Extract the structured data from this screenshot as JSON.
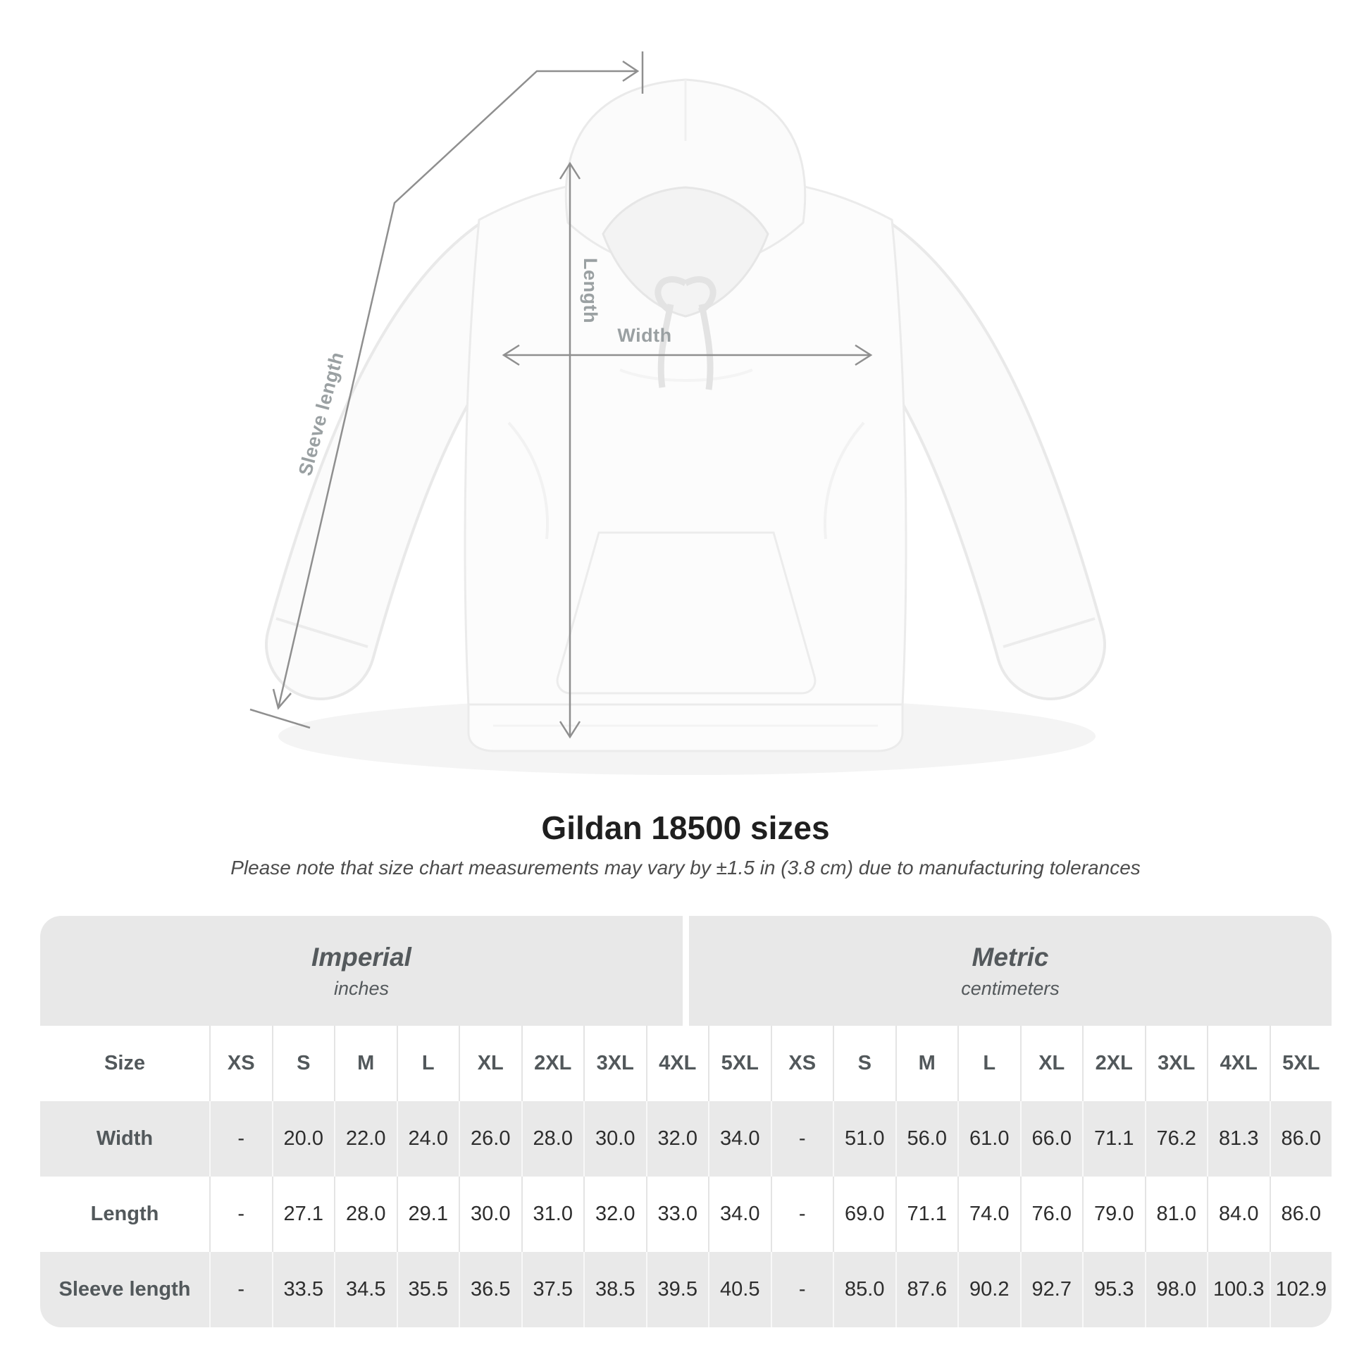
{
  "diagram": {
    "sleeve_label": "Sleeve length",
    "length_label": "Length",
    "width_label": "Width"
  },
  "title": "Gildan 18500 sizes",
  "subtitle": "Please note that size chart measurements may vary by ±1.5 in (3.8 cm) due to manufacturing tolerances",
  "colors": {
    "header_gray": "#e8e8e8",
    "row_gray": "#e9e9e9",
    "measure_line": "#8f8f8f",
    "value_text": "#2d2d2d",
    "label_text": "#52585b"
  },
  "table": {
    "sections": [
      {
        "label": "Imperial",
        "sublabel": "inches"
      },
      {
        "label": "Metric",
        "sublabel": "centimeters"
      }
    ],
    "size_header": "Size",
    "sizes": [
      "XS",
      "S",
      "M",
      "L",
      "XL",
      "2XL",
      "3XL",
      "4XL",
      "5XL"
    ],
    "rows": [
      {
        "label": "Width",
        "imperial": [
          "-",
          "20.0",
          "22.0",
          "24.0",
          "26.0",
          "28.0",
          "30.0",
          "32.0",
          "34.0"
        ],
        "metric": [
          "-",
          "51.0",
          "56.0",
          "61.0",
          "66.0",
          "71.1",
          "76.2",
          "81.3",
          "86.0"
        ]
      },
      {
        "label": "Length",
        "imperial": [
          "-",
          "27.1",
          "28.0",
          "29.1",
          "30.0",
          "31.0",
          "32.0",
          "33.0",
          "34.0"
        ],
        "metric": [
          "-",
          "69.0",
          "71.1",
          "74.0",
          "76.0",
          "79.0",
          "81.0",
          "84.0",
          "86.0"
        ]
      },
      {
        "label": "Sleeve length",
        "imperial": [
          "-",
          "33.5",
          "34.5",
          "35.5",
          "36.5",
          "37.5",
          "38.5",
          "39.5",
          "40.5"
        ],
        "metric": [
          "-",
          "85.0",
          "87.6",
          "90.2",
          "92.7",
          "95.3",
          "98.0",
          "100.3",
          "102.9"
        ]
      }
    ]
  },
  "chart_data": {
    "type": "table",
    "title": "Gildan 18500 sizes",
    "note": "Measurements may vary by ±1.5 in (3.8 cm) due to manufacturing tolerances",
    "columns": [
      "XS",
      "S",
      "M",
      "L",
      "XL",
      "2XL",
      "3XL",
      "4XL",
      "5XL"
    ],
    "units": {
      "imperial": "inches",
      "metric": "centimeters"
    },
    "rows": [
      {
        "measure": "Width",
        "imperial": [
          null,
          20.0,
          22.0,
          24.0,
          26.0,
          28.0,
          30.0,
          32.0,
          34.0
        ],
        "metric": [
          null,
          51.0,
          56.0,
          61.0,
          66.0,
          71.1,
          76.2,
          81.3,
          86.0
        ]
      },
      {
        "measure": "Length",
        "imperial": [
          null,
          27.1,
          28.0,
          29.1,
          30.0,
          31.0,
          32.0,
          33.0,
          34.0
        ],
        "metric": [
          null,
          69.0,
          71.1,
          74.0,
          76.0,
          79.0,
          81.0,
          84.0,
          86.0
        ]
      },
      {
        "measure": "Sleeve length",
        "imperial": [
          null,
          33.5,
          34.5,
          35.5,
          36.5,
          37.5,
          38.5,
          39.5,
          40.5
        ],
        "metric": [
          null,
          85.0,
          87.6,
          90.2,
          92.7,
          95.3,
          98.0,
          100.3,
          102.9
        ]
      }
    ]
  }
}
